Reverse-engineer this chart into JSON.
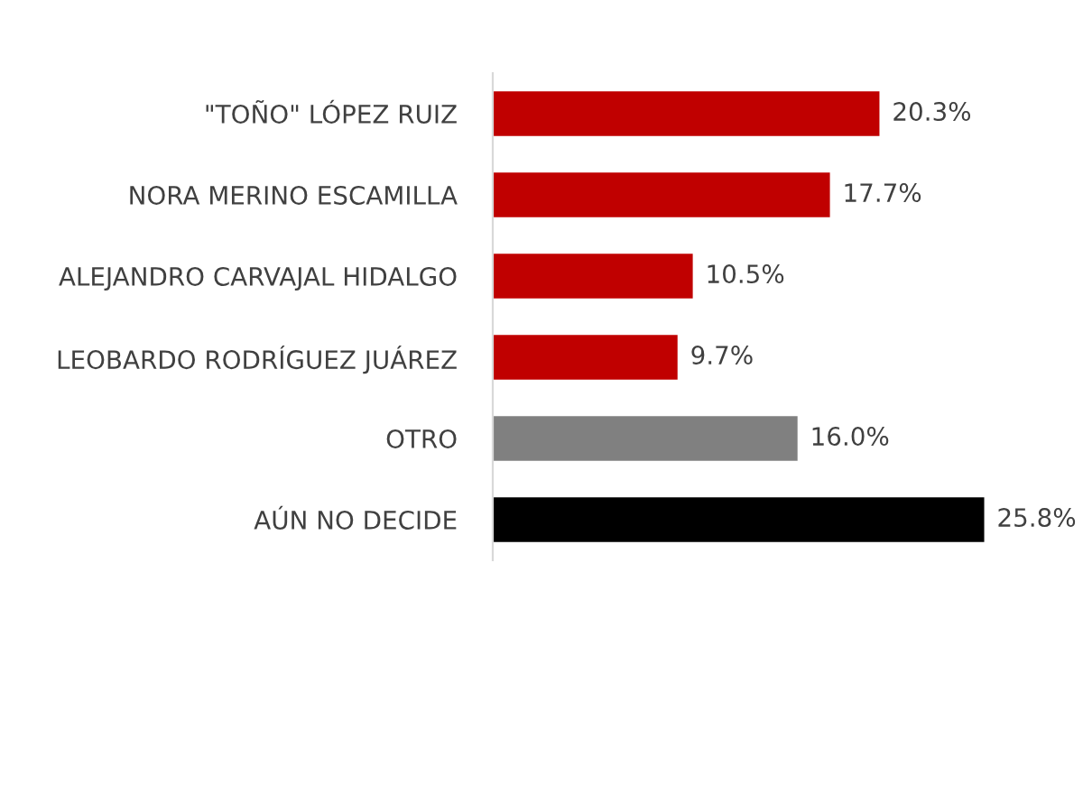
{
  "chart_data": {
    "type": "bar",
    "orientation": "horizontal",
    "categories": [
      "\"TOÑO\" LÓPEZ RUIZ",
      "NORA MERINO ESCAMILLA",
      "ALEJANDRO CARVAJAL HIDALGO",
      "LEOBARDO RODRÍGUEZ JUÁREZ",
      "OTRO",
      "AÚN NO DECIDE"
    ],
    "values": [
      20.3,
      17.7,
      10.5,
      9.7,
      16.0,
      25.8
    ],
    "value_labels": [
      "20.3%",
      "17.7%",
      "10.5%",
      "9.7%",
      "16.0%",
      "25.8%"
    ],
    "colors": [
      "#c00000",
      "#c00000",
      "#c00000",
      "#c00000",
      "#808080",
      "#000000"
    ],
    "grid": false,
    "legend": false
  }
}
